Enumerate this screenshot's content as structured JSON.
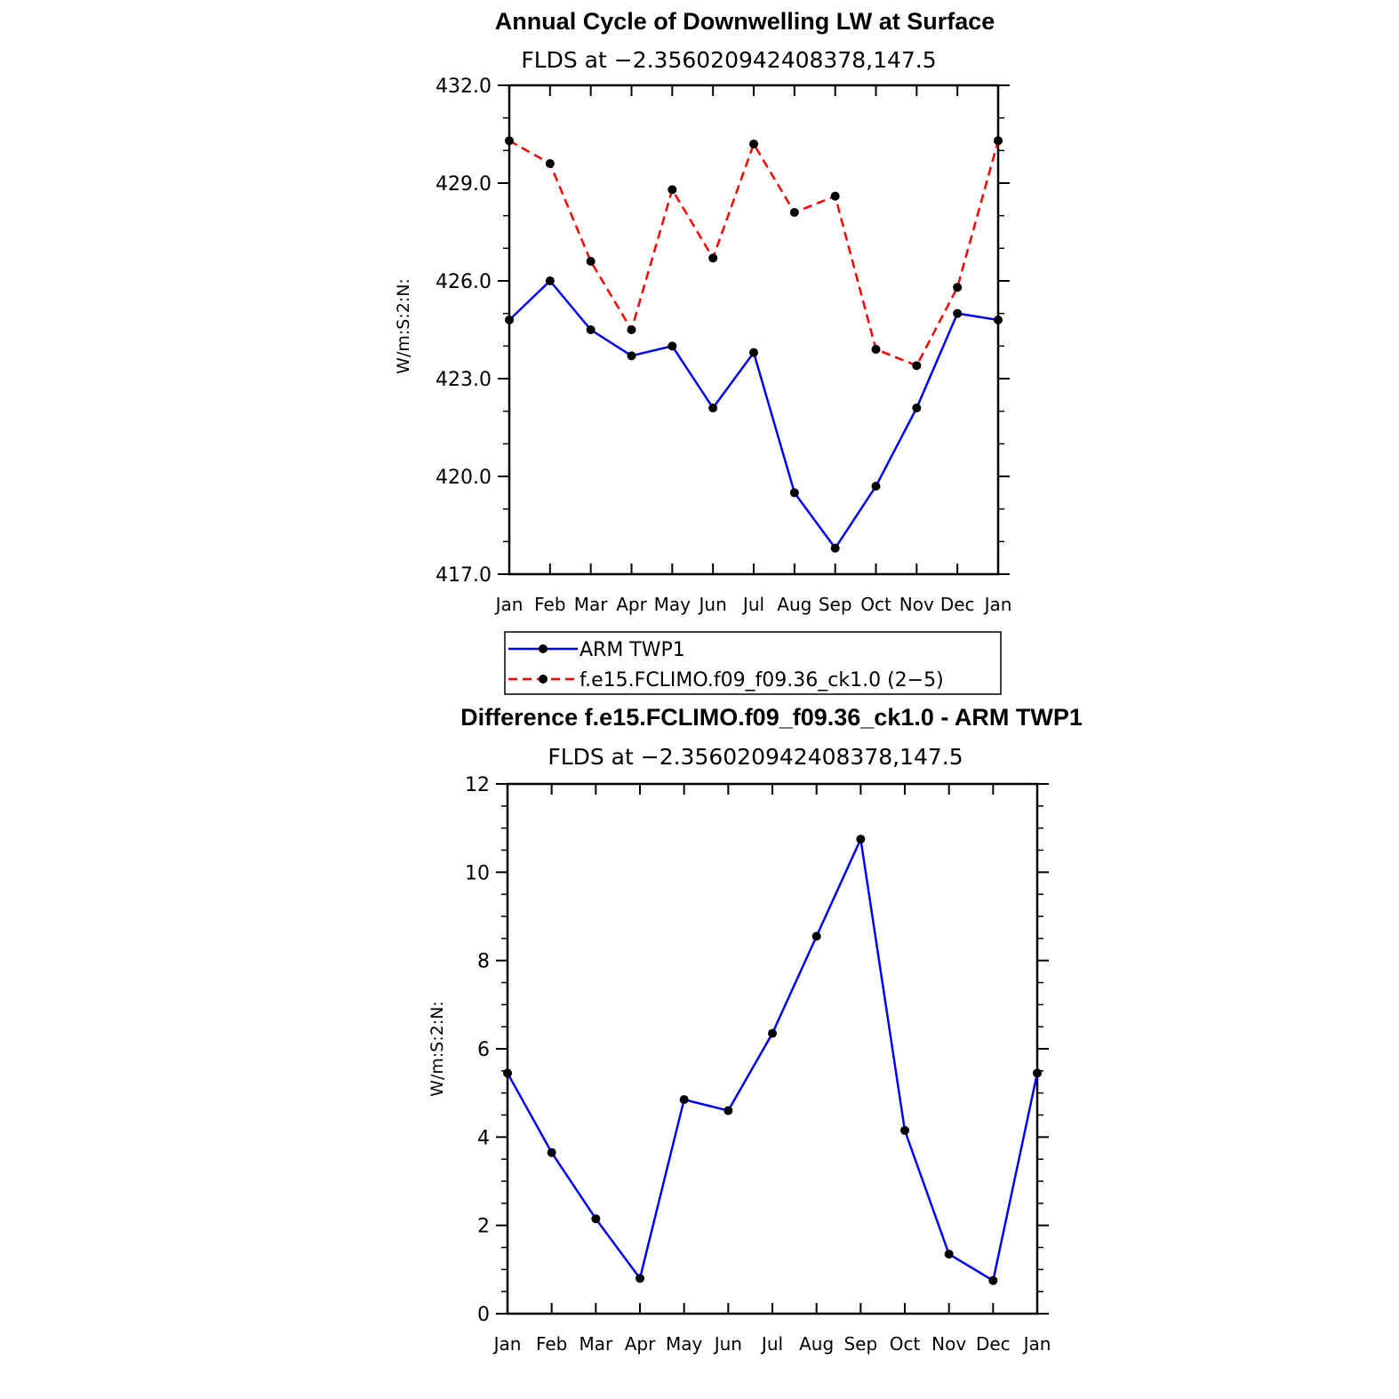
{
  "chart_data": [
    {
      "type": "line",
      "title": "Annual Cycle of Downwelling LW at Surface",
      "subtitle": "FLDS at −2.356020942408378,147.5",
      "xlabel": "",
      "ylabel": "W/m:S:2:N:",
      "categories": [
        "Jan",
        "Feb",
        "Mar",
        "Apr",
        "May",
        "Jun",
        "Jul",
        "Aug",
        "Sep",
        "Oct",
        "Nov",
        "Dec",
        "Jan"
      ],
      "ylim": [
        417.0,
        432.0
      ],
      "yticks": [
        "417.0",
        "420.0",
        "423.0",
        "426.0",
        "429.0",
        "432.0"
      ],
      "grid": false,
      "legend_position": "bottom",
      "series": [
        {
          "name": "ARM TWP1",
          "color": "#0000ff",
          "style": "solid",
          "values": [
            424.8,
            426.0,
            424.5,
            423.7,
            424.0,
            422.1,
            423.8,
            419.5,
            417.8,
            419.7,
            422.1,
            425.0,
            424.8
          ]
        },
        {
          "name": "f.e15.FCLIMO.f09_f09.36_ck1.0 (2−5)",
          "color": "#ff0000",
          "style": "dashed",
          "values": [
            430.3,
            429.6,
            426.6,
            424.5,
            428.8,
            426.7,
            430.2,
            428.1,
            428.6,
            423.9,
            423.4,
            425.8,
            430.3
          ]
        }
      ]
    },
    {
      "type": "line",
      "title": "Difference f.e15.FCLIMO.f09_f09.36_ck1.0 - ARM TWP1",
      "subtitle": "FLDS at −2.356020942408378,147.5",
      "xlabel": "",
      "ylabel": "W/m:S:2:N:",
      "categories": [
        "Jan",
        "Feb",
        "Mar",
        "Apr",
        "May",
        "Jun",
        "Jul",
        "Aug",
        "Sep",
        "Oct",
        "Nov",
        "Dec",
        "Jan"
      ],
      "ylim": [
        0,
        12
      ],
      "yticks": [
        "0",
        "2",
        "4",
        "6",
        "8",
        "10",
        "12"
      ],
      "grid": false,
      "series": [
        {
          "color": "#0000ff",
          "style": "solid",
          "values": [
            5.45,
            3.65,
            2.15,
            0.8,
            4.85,
            4.6,
            6.35,
            8.55,
            10.75,
            4.15,
            1.35,
            0.75,
            5.45
          ]
        }
      ]
    }
  ]
}
